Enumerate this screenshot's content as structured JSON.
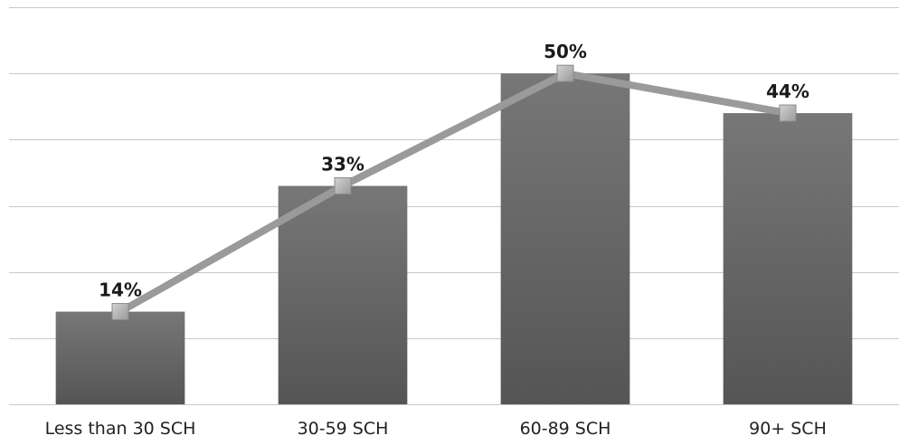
{
  "chart_data": {
    "type": "bar",
    "categories": [
      "Less than 30 SCH",
      "30-59 SCH",
      "60-89 SCH",
      "90+ SCH"
    ],
    "values": [
      14,
      33,
      50,
      44
    ],
    "data_labels": [
      "14%",
      "33%",
      "50%",
      "44%"
    ],
    "overlay_line": true,
    "title": "",
    "xlabel": "",
    "ylabel": "",
    "ylim": [
      0,
      60
    ],
    "grid": true,
    "colors": {
      "bar": "#5f5f5f",
      "line": "#9a9a9a",
      "marker": "#b5b5b5"
    }
  }
}
